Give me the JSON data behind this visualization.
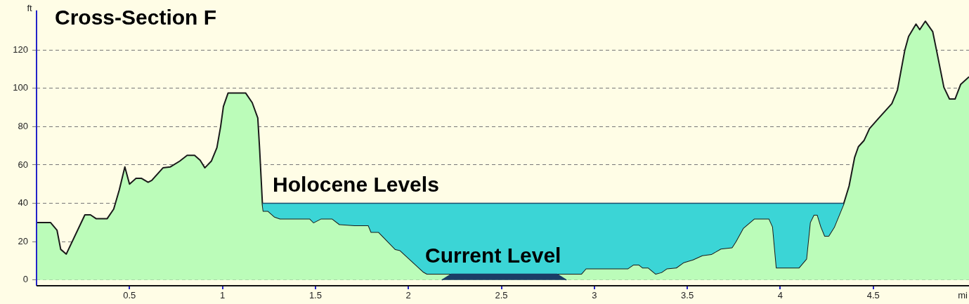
{
  "chart_data": {
    "type": "area",
    "title": "Cross-Section F",
    "xlabel": "mi",
    "ylabel": "ft",
    "xlim": [
      0,
      5.015
    ],
    "ylim": [
      -3,
      141
    ],
    "xticks": [
      0.5,
      {
        "value": 1,
        "label": "1"
      },
      1.5,
      {
        "value": 2,
        "label": "2"
      },
      2.5,
      {
        "value": 3,
        "label": "3"
      },
      3.5,
      {
        "value": 4,
        "label": "4"
      },
      4.5
    ],
    "yticks": [
      0,
      20,
      40,
      60,
      80,
      100,
      120
    ],
    "grid": "y",
    "legend": false,
    "series": [
      {
        "color": "#bbfcb9",
        "x": [
          0,
          0.075,
          0.11,
          0.13,
          0.16,
          0.26,
          0.29,
          0.32,
          0.38,
          0.415,
          0.445,
          0.475,
          0.5,
          0.535,
          0.565,
          0.6,
          0.62,
          0.68,
          0.72,
          0.77,
          0.81,
          0.85,
          0.88,
          0.905,
          0.94,
          0.97,
          0.99,
          1.005,
          1.03,
          1.125,
          1.16,
          1.19,
          1.2,
          1.215,
          1.22,
          1.245,
          1.28,
          1.31,
          1.47,
          1.49,
          1.53,
          1.59,
          1.63,
          1.71,
          1.785,
          1.8,
          1.84,
          1.93,
          1.955,
          2.08,
          2.1,
          2.93,
          2.955,
          3.18,
          3.21,
          3.24,
          3.26,
          3.29,
          3.33,
          3.36,
          3.39,
          3.44,
          3.48,
          3.53,
          3.58,
          3.63,
          3.68,
          3.74,
          3.76,
          3.8,
          3.86,
          3.94,
          3.96,
          3.98,
          4.1,
          4.14,
          4.16,
          4.18,
          4.2,
          4.22,
          4.24,
          4.26,
          4.29,
          4.34,
          4.37,
          4.4,
          4.42,
          4.45,
          4.48,
          4.53,
          4.6,
          4.63,
          4.67,
          4.69,
          4.73,
          4.75,
          4.78,
          4.82,
          4.84,
          4.88,
          4.91,
          4.94,
          4.97,
          5.015
        ],
        "values": [
          30,
          30,
          26,
          16,
          13.5,
          34,
          34,
          32,
          32,
          37,
          47,
          59,
          50,
          53,
          53,
          51,
          52,
          58.5,
          59,
          62,
          65,
          65,
          62.5,
          58.5,
          62,
          69,
          80,
          90.5,
          97.5,
          97.5,
          92.5,
          84.5,
          68,
          39.5,
          36,
          36,
          33,
          32,
          32,
          30,
          32,
          32,
          29,
          28.5,
          28.5,
          25,
          25,
          16,
          15.5,
          4.3,
          3.2,
          3.2,
          6,
          6,
          8,
          8,
          6.4,
          6.4,
          3.2,
          4,
          6,
          6.4,
          9.2,
          10.6,
          12.8,
          13.5,
          16.3,
          17,
          20,
          27,
          32,
          32,
          27.7,
          6.4,
          6.4,
          11,
          30,
          34,
          34,
          27.7,
          23,
          23,
          27.7,
          39.5,
          49,
          64,
          69.5,
          72.7,
          79,
          84.5,
          92,
          99,
          120,
          127,
          133.5,
          130.6,
          135,
          129.5,
          120,
          100.5,
          94.4,
          94.4,
          102,
          106
        ]
      },
      {
        "color": "#3bd5d6",
        "x": [
          1.215,
          1.22,
          1.245,
          1.28,
          1.31,
          1.47,
          1.49,
          1.53,
          1.59,
          1.63,
          1.71,
          1.785,
          1.8,
          1.84,
          1.93,
          1.955,
          2.08,
          2.1,
          2.93,
          2.955,
          3.18,
          3.21,
          3.24,
          3.26,
          3.29,
          3.33,
          3.36,
          3.39,
          3.44,
          3.48,
          3.53,
          3.58,
          3.63,
          3.68,
          3.74,
          3.76,
          3.8,
          3.86,
          3.94,
          3.96,
          3.98,
          4.1,
          4.14,
          4.16,
          4.18,
          4.2,
          4.22,
          4.24,
          4.26,
          4.29,
          4.34
        ],
        "values": [
          40,
          40,
          40,
          40,
          40,
          40,
          40,
          40,
          40,
          40,
          40,
          40,
          40,
          40,
          40,
          40,
          40,
          40,
          40,
          40,
          40,
          40,
          40,
          40,
          40,
          40,
          40,
          40,
          40,
          40,
          40,
          40,
          40,
          40,
          40,
          40,
          40,
          40,
          40,
          40,
          40,
          40,
          40,
          40,
          40,
          40,
          40,
          40,
          40,
          40,
          40
        ]
      },
      {
        "color": "#1b3d66",
        "x": [
          2.18,
          2.23,
          2.8,
          2.85
        ],
        "values": [
          0,
          3,
          3,
          0
        ]
      }
    ],
    "annotations": [
      {
        "text": "Holocene Levels",
        "x": 1.27,
        "y": 40
      },
      {
        "text": "Current Level",
        "x": 2.09,
        "y": 3
      }
    ]
  }
}
